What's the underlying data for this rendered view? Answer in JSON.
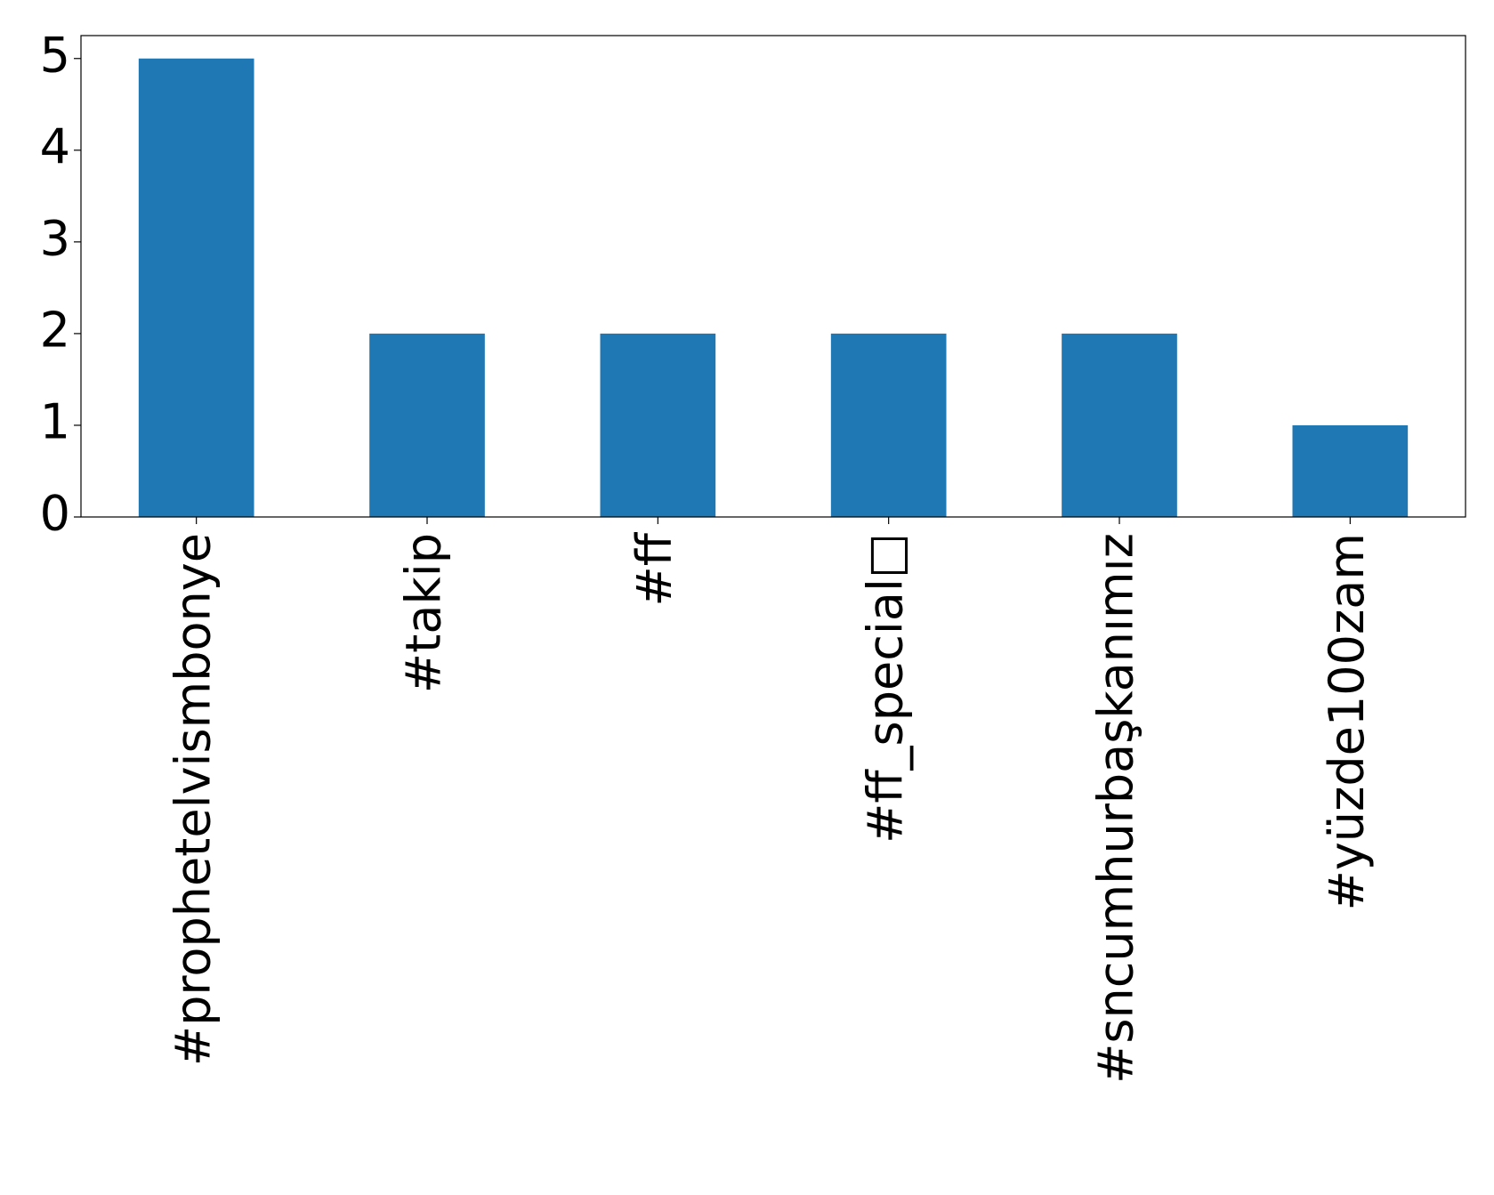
{
  "chart_data": {
    "type": "bar",
    "categories": [
      "#prophetelvismbonye",
      "#takip",
      "#ff",
      "#ff_special□",
      "#sncumhurbaşkanımız",
      "#yüzde100zam"
    ],
    "values": [
      5,
      2,
      2,
      2,
      2,
      1
    ],
    "color": "#1f77b4",
    "ylim": [
      0,
      5.25
    ],
    "yticks": [
      0,
      1,
      2,
      3,
      4,
      5
    ],
    "grid": false
  }
}
